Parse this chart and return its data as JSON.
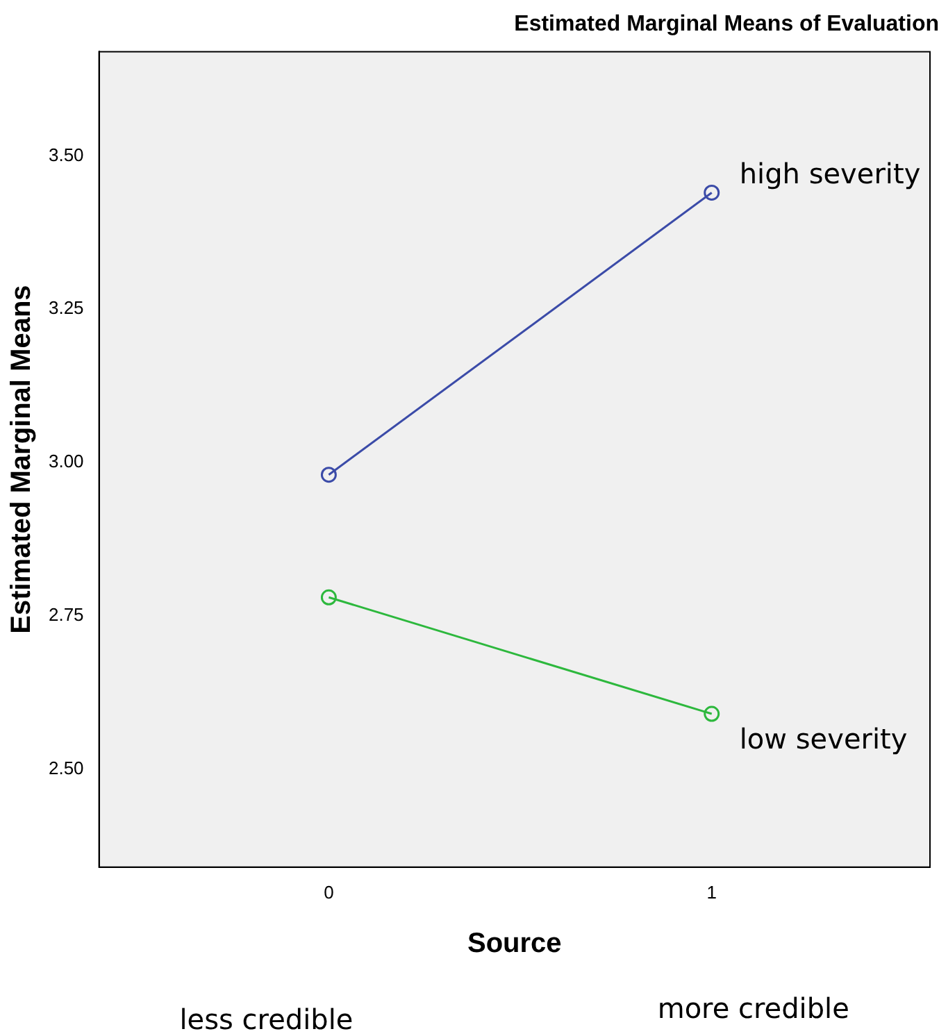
{
  "chart_data": {
    "type": "line",
    "title": "Estimated Marginal Means of Evaluation",
    "xlabel": "Source",
    "ylabel": "Estimated Marginal Means",
    "x": [
      0,
      1
    ],
    "series": [
      {
        "name": "high severity",
        "color": "#3b4ba8",
        "values": [
          2.98,
          3.44
        ]
      },
      {
        "name": "low severity",
        "color": "#2db83d",
        "values": [
          2.78,
          2.59
        ]
      }
    ],
    "xlim": [
      -0.6,
      1.57
    ],
    "xticks": [
      0,
      1
    ],
    "ylim": [
      2.34,
      3.67
    ],
    "yticks": [
      {
        "value": 2.5,
        "label": "2.50"
      },
      {
        "value": 2.75,
        "label": "2.75"
      },
      {
        "value": 3,
        "label": "3.00"
      },
      {
        "value": 3.25,
        "label": "3.25"
      },
      {
        "value": 3.5,
        "label": "3.50"
      }
    ],
    "annotations": [
      "less credible",
      "more credible"
    ],
    "marker": "circle",
    "line_style": "solid",
    "grid": false,
    "legend": false
  }
}
